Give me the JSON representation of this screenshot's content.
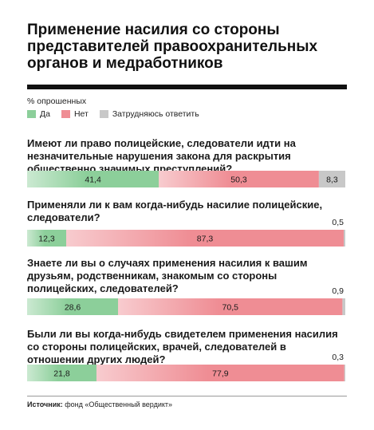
{
  "title": "Применение насилия со стороны представителей правоохранительных органов и медработников",
  "unit_label": "% опрошенных",
  "legend": [
    {
      "label": "Да",
      "color": "#8ccf9a"
    },
    {
      "label": "Нет",
      "color": "#ef8d94"
    },
    {
      "label": "Затрудняюсь ответить",
      "color": "#c8c8c8"
    }
  ],
  "chart_data": {
    "type": "bar",
    "stacked": true,
    "orientation": "horizontal",
    "series_names": [
      "Да",
      "Нет",
      "Затрудняюсь ответить"
    ],
    "questions": [
      {
        "text": "Имеют ли право полицейские, следователи идти на незначительные нарушения закона для раскрытия общественно значимых преступлений?",
        "values": [
          41.4,
          50.3,
          8.3
        ],
        "labels": [
          "41,4",
          "50,3",
          "8,3"
        ]
      },
      {
        "text": "Применяли ли к вам когда-нибудь насилие полицейские, следователи?",
        "values": [
          12.3,
          87.3,
          0.5
        ],
        "labels": [
          "12,3",
          "87,3",
          "0,5"
        ]
      },
      {
        "text": "Знаете ли вы о случаях применения насилия к вашим друзьям, родственникам, знакомым со стороны полицейских, следователей?",
        "values": [
          28.6,
          70.5,
          0.9
        ],
        "labels": [
          "28,6",
          "70,5",
          "0,9"
        ]
      },
      {
        "text": "Были ли вы когда-нибудь свидетелем применения насилия со стороны полицейских, врачей, следователей в отношении других людей?",
        "values": [
          21.8,
          77.9,
          0.3
        ],
        "labels": [
          "21,8",
          "77,9",
          "0,3"
        ]
      }
    ]
  },
  "source": {
    "label": "Источник:",
    "text": " фонд «Общественный вердикт»"
  }
}
